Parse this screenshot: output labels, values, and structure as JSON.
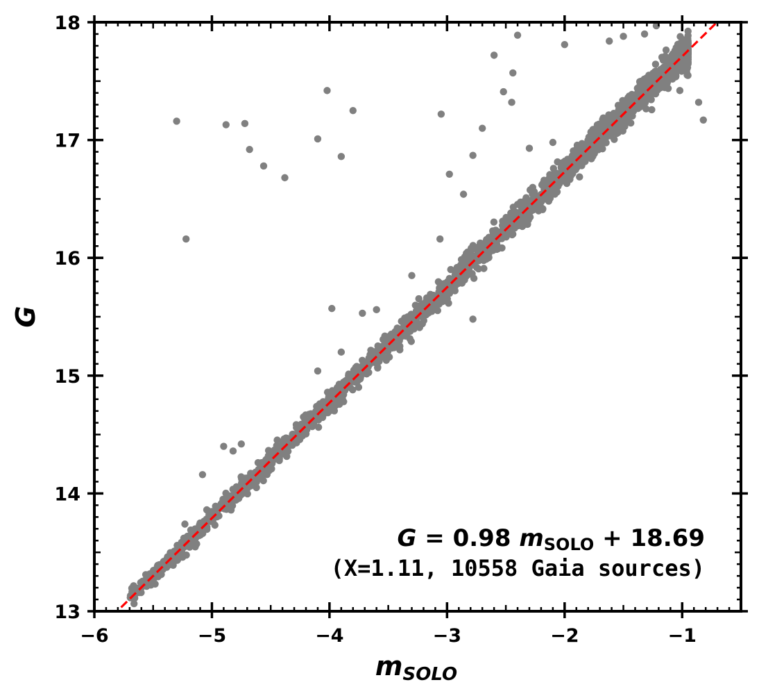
{
  "chart_data": {
    "type": "scatter",
    "xlabel": "m",
    "xlabel_sub": "SOLO",
    "ylabel": "G",
    "xlim": [
      -6,
      -0.5
    ],
    "ylim": [
      13,
      18
    ],
    "xticks": [
      -6,
      -5,
      -4,
      -3,
      -2,
      -1
    ],
    "xtick_labels": [
      "−6",
      "−5",
      "−4",
      "−3",
      "−2",
      "−1"
    ],
    "yticks": [
      13,
      14,
      15,
      16,
      17,
      18
    ],
    "ytick_labels": [
      "13",
      "14",
      "15",
      "16",
      "17",
      "18"
    ],
    "grid": false,
    "point_color": "#808080",
    "fit_line": {
      "slope": 0.98,
      "intercept": 18.69,
      "color": "#ff0000",
      "style": "dashed"
    },
    "annotation": {
      "eq_lhs": "G",
      "eq_mid": " = 0.98 ",
      "eq_m": "m",
      "eq_sub": "SOLO",
      "eq_rhs": " + 18.69",
      "note": "(X=1.11, 10558 Gaia sources)"
    },
    "outliers": [
      [
        -5.3,
        17.16
      ],
      [
        -4.88,
        17.13
      ],
      [
        -4.72,
        17.14
      ],
      [
        -4.68,
        16.92
      ],
      [
        -4.56,
        16.78
      ],
      [
        -4.38,
        16.68
      ],
      [
        -4.1,
        17.01
      ],
      [
        -4.02,
        17.42
      ],
      [
        -3.8,
        17.25
      ],
      [
        -3.9,
        16.86
      ],
      [
        -3.05,
        17.22
      ],
      [
        -2.98,
        16.71
      ],
      [
        -2.6,
        17.72
      ],
      [
        -2.4,
        17.89
      ],
      [
        -2.44,
        17.57
      ],
      [
        -2.45,
        17.32
      ],
      [
        -2.52,
        17.41
      ],
      [
        -2.0,
        17.81
      ],
      [
        -1.62,
        17.84
      ],
      [
        -1.5,
        17.88
      ],
      [
        -1.22,
        17.97
      ],
      [
        -1.32,
        17.9
      ],
      [
        -2.7,
        17.1
      ],
      [
        -2.78,
        16.87
      ],
      [
        -2.86,
        16.54
      ],
      [
        -5.22,
        16.16
      ],
      [
        -3.98,
        15.57
      ],
      [
        -3.72,
        15.53
      ],
      [
        -2.78,
        15.48
      ],
      [
        -3.06,
        16.16
      ],
      [
        -3.3,
        15.85
      ],
      [
        -3.6,
        15.56
      ],
      [
        -4.1,
        15.04
      ],
      [
        -3.9,
        15.2
      ],
      [
        -4.9,
        14.4
      ],
      [
        -4.75,
        14.42
      ],
      [
        -5.08,
        14.16
      ],
      [
        -4.82,
        14.36
      ],
      [
        -5.23,
        13.74
      ],
      [
        -0.98,
        17.65
      ],
      [
        -0.86,
        17.32
      ],
      [
        -0.82,
        17.17
      ],
      [
        -1.02,
        17.42
      ],
      [
        -2.1,
        16.98
      ],
      [
        -2.3,
        16.93
      ]
    ]
  }
}
